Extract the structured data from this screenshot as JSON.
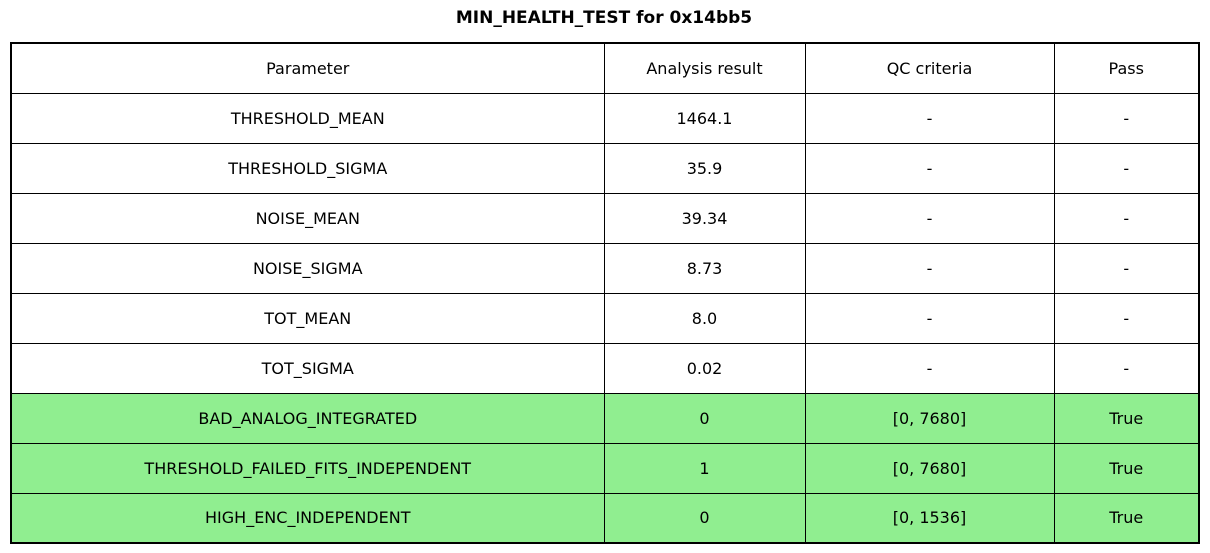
{
  "title": "MIN_HEALTH_TEST for 0x14bb5",
  "colors": {
    "pass_green": "#90EE90"
  },
  "table": {
    "headers": [
      "Parameter",
      "Analysis result",
      "QC criteria",
      "Pass"
    ],
    "rows": [
      {
        "parameter": "THRESHOLD_MEAN",
        "result": "1464.1",
        "qc": "-",
        "pass": "-",
        "highlight": false
      },
      {
        "parameter": "THRESHOLD_SIGMA",
        "result": "35.9",
        "qc": "-",
        "pass": "-",
        "highlight": false
      },
      {
        "parameter": "NOISE_MEAN",
        "result": "39.34",
        "qc": "-",
        "pass": "-",
        "highlight": false
      },
      {
        "parameter": "NOISE_SIGMA",
        "result": "8.73",
        "qc": "-",
        "pass": "-",
        "highlight": false
      },
      {
        "parameter": "TOT_MEAN",
        "result": "8.0",
        "qc": "-",
        "pass": "-",
        "highlight": false
      },
      {
        "parameter": "TOT_SIGMA",
        "result": "0.02",
        "qc": "-",
        "pass": "-",
        "highlight": false
      },
      {
        "parameter": "BAD_ANALOG_INTEGRATED",
        "result": "0",
        "qc": "[0, 7680]",
        "pass": "True",
        "highlight": true
      },
      {
        "parameter": "THRESHOLD_FAILED_FITS_INDEPENDENT",
        "result": "1",
        "qc": "[0, 7680]",
        "pass": "True",
        "highlight": true
      },
      {
        "parameter": "HIGH_ENC_INDEPENDENT",
        "result": "0",
        "qc": "[0, 1536]",
        "pass": "True",
        "highlight": true
      }
    ]
  }
}
